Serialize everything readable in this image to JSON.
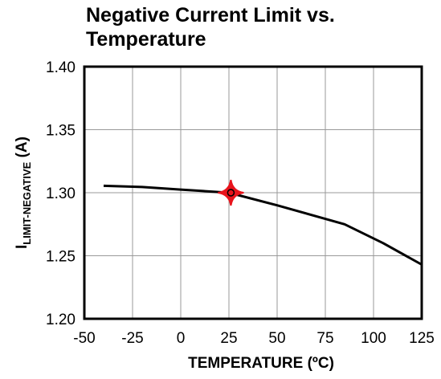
{
  "chart_data": {
    "type": "line",
    "title_line1": "Negative Current Limit vs.",
    "title_line2": "Temperature",
    "xlabel": "TEMPERATURE  (ºC)",
    "ylabel_main": "I",
    "ylabel_sub": "LIMIT-NEGATIVE",
    "ylabel_unit": " (A)",
    "xlim": [
      -50,
      125
    ],
    "ylim": [
      1.2,
      1.4
    ],
    "x_ticks": [
      -50,
      -25,
      0,
      25,
      50,
      75,
      100,
      125
    ],
    "x_tick_labels": [
      "-50",
      "-25",
      "0",
      "25",
      "50",
      "75",
      "100",
      "125"
    ],
    "y_ticks": [
      1.2,
      1.25,
      1.3,
      1.35,
      1.4
    ],
    "y_tick_labels": [
      "1.20",
      "1.25",
      "1.30",
      "1.35",
      "1.40"
    ],
    "grid": true,
    "series": [
      {
        "x": [
          -40,
          -20,
          0,
          25,
          50,
          85,
          105,
          125
        ],
        "y": [
          1.3055,
          1.3045,
          1.3025,
          1.3,
          1.29,
          1.275,
          1.26,
          1.243
        ]
      }
    ],
    "marker": {
      "x": 26,
      "y": 1.3
    },
    "colors": {
      "line": "#000000",
      "grid": "#999999",
      "frame": "#000000",
      "marker": "#e8141c"
    }
  }
}
